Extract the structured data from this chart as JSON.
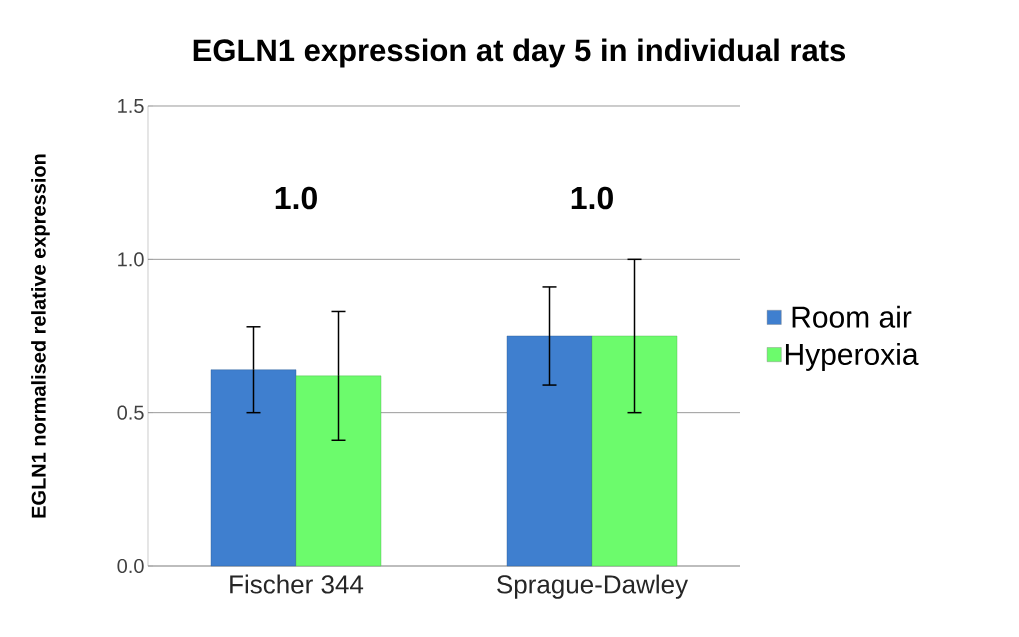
{
  "chart_data": {
    "type": "bar",
    "title": "EGLN1 expression at day 5 in individual rats",
    "ylabel": "EGLN1 normalised relative expression",
    "categories": [
      "Fischer 344",
      "Sprague-Dawley"
    ],
    "series": [
      {
        "name": "Room air",
        "color": "#3f7fcf",
        "values": [
          0.64,
          0.75
        ],
        "errors": [
          0.14,
          0.16
        ]
      },
      {
        "name": "Hyperoxia",
        "color": "#6cfb6c",
        "values": [
          0.62,
          0.75
        ],
        "errors": [
          0.21,
          0.25
        ]
      }
    ],
    "ylim": [
      0,
      1.5
    ],
    "yticks": [
      {
        "value": 0,
        "label": "0.0"
      },
      {
        "value": 0.5,
        "label": "0.5"
      },
      {
        "value": 1,
        "label": "1.0"
      },
      {
        "value": 1.5,
        "label": "1.5"
      }
    ],
    "grid": "y",
    "legend": "right",
    "annotations": [
      "1.0",
      "1.0"
    ]
  }
}
